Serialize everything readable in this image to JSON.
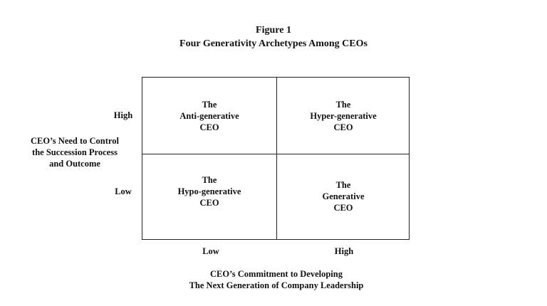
{
  "title": {
    "line1": "Figure 1",
    "line2": "Four Generativity Archetypes Among CEOs"
  },
  "y_axis": {
    "label_lines": [
      "CEO’s Need to Control",
      "the Succession Process",
      "and Outcome"
    ],
    "high": "High",
    "low": "Low"
  },
  "x_axis": {
    "label_lines": [
      "CEO’s Commitment to Developing",
      "The Next Generation of Company Leadership"
    ],
    "low": "Low",
    "high": "High"
  },
  "quadrants": [
    {
      "lines": [
        "The",
        "Anti-generative",
        "CEO"
      ]
    },
    {
      "lines": [
        "The",
        "Hyper-generative",
        "CEO"
      ]
    },
    {
      "lines": [
        "The",
        "Hypo-generative",
        "CEO"
      ]
    },
    {
      "lines": [
        "The",
        "Generative",
        "CEO"
      ]
    }
  ]
}
